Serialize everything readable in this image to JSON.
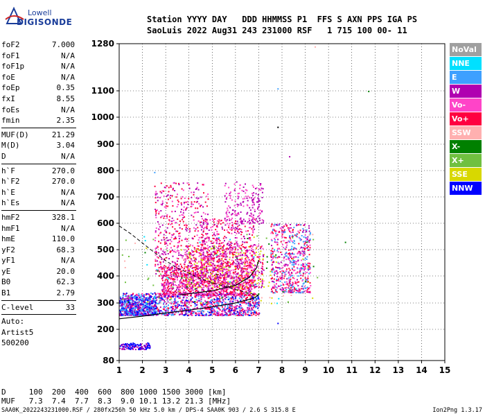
{
  "logo": {
    "line1": "Lowell",
    "line2": "DIGISONDE"
  },
  "header": {
    "labels": "Station YYYY DAY   DDD HHMMSS P1  FFS S AXN PPS IGA PS",
    "values": "SaoLuis 2022 Aug31 243 231000 RSF   1 715 100 00- 11"
  },
  "params_groups": [
    [
      {
        "k": "foF2",
        "v": "7.000"
      },
      {
        "k": "foF1",
        "v": "N/A"
      },
      {
        "k": "foF1p",
        "v": "N/A"
      },
      {
        "k": "foE",
        "v": "N/A"
      },
      {
        "k": "foEp",
        "v": "0.35"
      },
      {
        "k": "fxI",
        "v": "8.55"
      },
      {
        "k": "foEs",
        "v": "N/A"
      },
      {
        "k": "fmin",
        "v": "2.35"
      }
    ],
    [
      {
        "k": "MUF(D)",
        "v": "21.29"
      },
      {
        "k": "M(D)",
        "v": "3.04"
      },
      {
        "k": "D",
        "v": "N/A"
      }
    ],
    [
      {
        "k": "h`F",
        "v": "270.0"
      },
      {
        "k": "h`F2",
        "v": "270.0"
      },
      {
        "k": "h`E",
        "v": "N/A"
      },
      {
        "k": "h`Es",
        "v": "N/A"
      }
    ],
    [
      {
        "k": "hmF2",
        "v": "328.1"
      },
      {
        "k": "hmF1",
        "v": "N/A"
      },
      {
        "k": "hmE",
        "v": "110.0"
      },
      {
        "k": "yF2",
        "v": "68.3"
      },
      {
        "k": "yF1",
        "v": "N/A"
      },
      {
        "k": "yE",
        "v": "20.0"
      },
      {
        "k": "B0",
        "v": "62.3"
      },
      {
        "k": "B1",
        "v": "2.79"
      }
    ],
    [
      {
        "k": "C-level",
        "v": "33"
      }
    ]
  ],
  "autoscale": [
    "Auto:",
    "Artist5",
    "500200"
  ],
  "legend": [
    {
      "label": "NoVal",
      "color": "#a0a0a0"
    },
    {
      "label": "NNE",
      "color": "#00e0ff"
    },
    {
      "label": "E",
      "color": "#3ea0ff"
    },
    {
      "label": "W",
      "color": "#b000b0"
    },
    {
      "label": "Vo-",
      "color": "#ff44c8"
    },
    {
      "label": "Vo+",
      "color": "#ff0040"
    },
    {
      "label": "SSW",
      "color": "#ffb0b0"
    },
    {
      "label": "X-",
      "color": "#008000"
    },
    {
      "label": "X+",
      "color": "#70c040"
    },
    {
      "label": "SSE",
      "color": "#d8d800"
    },
    {
      "label": "NNW",
      "color": "#0000ff"
    }
  ],
  "bottom": {
    "line1": "D     100  200  400  600  800 1000 1500 3000 [km]",
    "line2": "MUF   7.3  7.4  7.7  8.3  9.0 10.1 13.2 21.3 [MHz]"
  },
  "footer": "SAA0K_2022243231000.RSF / 280fx256h 50 kHz 5.0 km / DPS-4 SAA0K 903 / 2.6 S 315.8 E",
  "version": "Ion2Png 1.3.17",
  "chart_data": {
    "type": "scatter",
    "x_ticks": [
      1,
      2,
      3,
      4,
      5,
      6,
      7,
      8,
      9,
      10,
      11,
      12,
      13,
      14,
      15
    ],
    "y_ticks": [
      80,
      200,
      300,
      400,
      500,
      600,
      700,
      800,
      900,
      1000,
      1100,
      1280
    ],
    "xlim": [
      1,
      15
    ],
    "ylim": [
      80,
      1280
    ],
    "echo_clusters": [
      {
        "x_range": [
          1.0,
          7.0
        ],
        "h_range": [
          255,
          340
        ],
        "weight": 1200,
        "colors": [
          "#b000b0",
          "#ff44c8",
          "#ff0040",
          "#0000ff",
          "#3ea0ff"
        ]
      },
      {
        "x_range": [
          2.8,
          6.8
        ],
        "h_range": [
          330,
          440
        ],
        "weight": 900,
        "colors": [
          "#ff0040",
          "#b000b0",
          "#ff44c8"
        ]
      },
      {
        "x_range": [
          3.8,
          7.2
        ],
        "h_range": [
          360,
          520
        ],
        "weight": 700,
        "colors": [
          "#ff0040",
          "#b000b0",
          "#ff44c8",
          "#d8d800"
        ]
      },
      {
        "x_range": [
          2.5,
          4.8
        ],
        "h_range": [
          400,
          760
        ],
        "weight": 500,
        "colors": [
          "#ff44c8",
          "#b000b0",
          "#ff0040"
        ]
      },
      {
        "x_range": [
          4.5,
          6.8
        ],
        "h_range": [
          440,
          620
        ],
        "weight": 400,
        "colors": [
          "#b000b0",
          "#ff44c8",
          "#ff0040"
        ]
      },
      {
        "x_range": [
          5.5,
          7.2
        ],
        "h_range": [
          600,
          760
        ],
        "weight": 180,
        "colors": [
          "#b000b0",
          "#ff44c8"
        ]
      },
      {
        "x_range": [
          7.5,
          9.2
        ],
        "h_range": [
          340,
          600
        ],
        "weight": 600,
        "colors": [
          "#ff0040",
          "#b000b0",
          "#ff44c8",
          "#3ea0ff"
        ]
      },
      {
        "x_range": [
          1.0,
          2.6
        ],
        "h_range": [
          255,
          330
        ],
        "weight": 450,
        "colors": [
          "#0000ff",
          "#3ea0ff",
          "#b000b0"
        ]
      },
      {
        "x_range": [
          1.0,
          2.3
        ],
        "h_range": [
          125,
          150
        ],
        "weight": 120,
        "colors": [
          "#0000ff",
          "#b000b0"
        ]
      },
      {
        "x_range": [
          1.0,
          9.5
        ],
        "h_range": [
          300,
          560
        ],
        "weight": 150,
        "colors": [
          "#008000",
          "#70c040",
          "#d8d800",
          "#00e0ff",
          "#ffb0b0"
        ]
      }
    ],
    "isolated_points": [
      {
        "x": 7.8,
        "h": 1110,
        "color": "#3ea0ff"
      },
      {
        "x": 11.7,
        "h": 1100,
        "color": "#008000"
      },
      {
        "x": 7.8,
        "h": 965,
        "color": "#000000"
      },
      {
        "x": 8.3,
        "h": 855,
        "color": "#b000b0"
      },
      {
        "x": 9.4,
        "h": 1270,
        "color": "#ffb0b0"
      },
      {
        "x": 10.7,
        "h": 530,
        "color": "#008000"
      },
      {
        "x": 7.8,
        "h": 225,
        "color": "#0000ff"
      },
      {
        "x": 2.5,
        "h": 795,
        "color": "#3ea0ff"
      }
    ],
    "virtual_height_trace": [
      {
        "x": 1.0,
        "h": 240
      },
      {
        "x": 2.0,
        "h": 250
      },
      {
        "x": 3.0,
        "h": 262
      },
      {
        "x": 4.0,
        "h": 273
      },
      {
        "x": 5.0,
        "h": 285
      },
      {
        "x": 6.0,
        "h": 300
      },
      {
        "x": 6.8,
        "h": 318
      },
      {
        "x": 7.0,
        "h": 330
      }
    ],
    "virtual_height_upper": [
      {
        "x": 3.6,
        "h": 330
      },
      {
        "x": 5.0,
        "h": 345
      },
      {
        "x": 6.0,
        "h": 365
      },
      {
        "x": 6.6,
        "h": 395
      },
      {
        "x": 6.9,
        "h": 430
      },
      {
        "x": 7.0,
        "h": 460
      }
    ],
    "electron_density_profile": [
      {
        "x": 1.0,
        "h": 590
      },
      {
        "x": 1.5,
        "h": 560
      },
      {
        "x": 2.0,
        "h": 525
      },
      {
        "x": 2.5,
        "h": 490
      },
      {
        "x": 3.0,
        "h": 458
      },
      {
        "x": 3.5,
        "h": 430
      },
      {
        "x": 4.0,
        "h": 410
      },
      {
        "x": 4.5,
        "h": 390
      },
      {
        "x": 5.0,
        "h": 375
      },
      {
        "x": 5.5,
        "h": 362
      },
      {
        "x": 6.0,
        "h": 350
      },
      {
        "x": 6.5,
        "h": 338
      },
      {
        "x": 7.0,
        "h": 328
      }
    ]
  }
}
